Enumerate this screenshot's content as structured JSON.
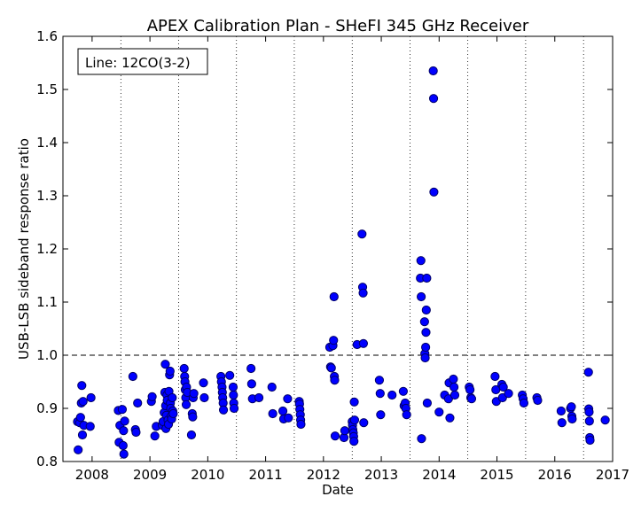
{
  "chart_data": {
    "type": "scatter",
    "title": "APEX Calibration Plan - SHeFI 345 GHz Receiver",
    "xlabel": "Date",
    "ylabel": "USB-LSB sideband response ratio",
    "xlim": [
      "2007-07-01",
      "2017-01-01"
    ],
    "ylim": [
      0.8,
      1.6
    ],
    "x_ticks": [
      "2008",
      "2009",
      "2010",
      "2011",
      "2012",
      "2013",
      "2014",
      "2015",
      "2016",
      "2017"
    ],
    "y_ticks": [
      "0.8",
      "0.9",
      "1.0",
      "1.1",
      "1.2",
      "1.3",
      "1.4",
      "1.5",
      "1.6"
    ],
    "x_gridlines": [
      "2008-07-01",
      "2009-07-01",
      "2010-07-01",
      "2011-07-01",
      "2012-07-01",
      "2013-07-01",
      "2014-07-01",
      "2015-07-01",
      "2016-07-01"
    ],
    "reference_line": 1.0,
    "annotation": "Line: 12CO(3-2)",
    "legend_position": "top-left",
    "marker_color": "#0000ff",
    "marker_edge_color": "#000066",
    "points": [
      {
        "x": "2007-10-01",
        "y": 0.875
      },
      {
        "x": "2007-10-05",
        "y": 0.822
      },
      {
        "x": "2007-10-15",
        "y": 0.873
      },
      {
        "x": "2007-10-20",
        "y": 0.883
      },
      {
        "x": "2007-10-25",
        "y": 0.91
      },
      {
        "x": "2007-10-28",
        "y": 0.943
      },
      {
        "x": "2007-11-01",
        "y": 0.85
      },
      {
        "x": "2007-11-05",
        "y": 0.913
      },
      {
        "x": "2007-11-10",
        "y": 0.868
      },
      {
        "x": "2007-12-20",
        "y": 0.866
      },
      {
        "x": "2007-12-25",
        "y": 0.92
      },
      {
        "x": "2008-06-15",
        "y": 0.896
      },
      {
        "x": "2008-06-20",
        "y": 0.836
      },
      {
        "x": "2008-06-25",
        "y": 0.868
      },
      {
        "x": "2008-07-10",
        "y": 0.898
      },
      {
        "x": "2008-07-15",
        "y": 0.83
      },
      {
        "x": "2008-07-18",
        "y": 0.858
      },
      {
        "x": "2008-07-20",
        "y": 0.814
      },
      {
        "x": "2008-07-25",
        "y": 0.876
      },
      {
        "x": "2008-09-15",
        "y": 0.96
      },
      {
        "x": "2008-10-01",
        "y": 0.86
      },
      {
        "x": "2008-10-05",
        "y": 0.855
      },
      {
        "x": "2008-10-15",
        "y": 0.91
      },
      {
        "x": "2009-01-10",
        "y": 0.913
      },
      {
        "x": "2009-01-15",
        "y": 0.922
      },
      {
        "x": "2009-02-01",
        "y": 0.848
      },
      {
        "x": "2009-02-10",
        "y": 0.866
      },
      {
        "x": "2009-03-20",
        "y": 0.868
      },
      {
        "x": "2009-03-25",
        "y": 0.875
      },
      {
        "x": "2009-04-01",
        "y": 0.892
      },
      {
        "x": "2009-04-05",
        "y": 0.93
      },
      {
        "x": "2009-04-08",
        "y": 0.983
      },
      {
        "x": "2009-04-10",
        "y": 0.905
      },
      {
        "x": "2009-04-12",
        "y": 0.862
      },
      {
        "x": "2009-04-15",
        "y": 0.887
      },
      {
        "x": "2009-04-18",
        "y": 0.925
      },
      {
        "x": "2009-04-20",
        "y": 0.915
      },
      {
        "x": "2009-04-25",
        "y": 0.878
      },
      {
        "x": "2009-04-28",
        "y": 0.87
      },
      {
        "x": "2009-05-01",
        "y": 0.932
      },
      {
        "x": "2009-05-05",
        "y": 0.963
      },
      {
        "x": "2009-05-08",
        "y": 0.97
      },
      {
        "x": "2009-05-10",
        "y": 0.91
      },
      {
        "x": "2009-05-12",
        "y": 0.9
      },
      {
        "x": "2009-05-15",
        "y": 0.885
      },
      {
        "x": "2009-05-18",
        "y": 0.88
      },
      {
        "x": "2009-05-22",
        "y": 0.92
      },
      {
        "x": "2009-05-25",
        "y": 0.895
      },
      {
        "x": "2009-05-28",
        "y": 0.89
      },
      {
        "x": "2009-08-05",
        "y": 0.975
      },
      {
        "x": "2009-08-08",
        "y": 0.96
      },
      {
        "x": "2009-08-10",
        "y": 0.95
      },
      {
        "x": "2009-08-12",
        "y": 0.935
      },
      {
        "x": "2009-08-15",
        "y": 0.92
      },
      {
        "x": "2009-08-18",
        "y": 0.907
      },
      {
        "x": "2009-08-20",
        "y": 0.94
      },
      {
        "x": "2009-08-25",
        "y": 0.93
      },
      {
        "x": "2009-09-20",
        "y": 0.85
      },
      {
        "x": "2009-09-25",
        "y": 0.89
      },
      {
        "x": "2009-09-28",
        "y": 0.884
      },
      {
        "x": "2009-10-01",
        "y": 0.92
      },
      {
        "x": "2009-10-05",
        "y": 0.928
      },
      {
        "x": "2009-12-05",
        "y": 0.948
      },
      {
        "x": "2009-12-10",
        "y": 0.92
      },
      {
        "x": "2010-03-25",
        "y": 0.96
      },
      {
        "x": "2010-03-28",
        "y": 0.95
      },
      {
        "x": "2010-04-01",
        "y": 0.94
      },
      {
        "x": "2010-04-03",
        "y": 0.93
      },
      {
        "x": "2010-04-05",
        "y": 0.92
      },
      {
        "x": "2010-04-08",
        "y": 0.91
      },
      {
        "x": "2010-04-10",
        "y": 0.897
      },
      {
        "x": "2010-05-20",
        "y": 0.962
      },
      {
        "x": "2010-06-10",
        "y": 0.94
      },
      {
        "x": "2010-06-12",
        "y": 0.925
      },
      {
        "x": "2010-06-14",
        "y": 0.91
      },
      {
        "x": "2010-06-16",
        "y": 0.9
      },
      {
        "x": "2010-10-01",
        "y": 0.975
      },
      {
        "x": "2010-10-05",
        "y": 0.946
      },
      {
        "x": "2010-10-10",
        "y": 0.918
      },
      {
        "x": "2010-11-20",
        "y": 0.92
      },
      {
        "x": "2011-02-10",
        "y": 0.94
      },
      {
        "x": "2011-02-15",
        "y": 0.89
      },
      {
        "x": "2011-04-20",
        "y": 0.895
      },
      {
        "x": "2011-04-25",
        "y": 0.88
      },
      {
        "x": "2011-05-20",
        "y": 0.918
      },
      {
        "x": "2011-05-25",
        "y": 0.882
      },
      {
        "x": "2011-08-01",
        "y": 0.913
      },
      {
        "x": "2011-08-03",
        "y": 0.908
      },
      {
        "x": "2011-08-05",
        "y": 0.898
      },
      {
        "x": "2011-08-08",
        "y": 0.888
      },
      {
        "x": "2011-08-10",
        "y": 0.878
      },
      {
        "x": "2011-08-12",
        "y": 0.87
      },
      {
        "x": "2012-02-10",
        "y": 1.015
      },
      {
        "x": "2012-02-15",
        "y": 0.978
      },
      {
        "x": "2012-02-20",
        "y": 0.976
      },
      {
        "x": "2012-03-01",
        "y": 1.018
      },
      {
        "x": "2012-03-05",
        "y": 1.028
      },
      {
        "x": "2012-03-08",
        "y": 1.11
      },
      {
        "x": "2012-03-10",
        "y": 0.96
      },
      {
        "x": "2012-03-12",
        "y": 0.953
      },
      {
        "x": "2012-03-15",
        "y": 0.848
      },
      {
        "x": "2012-05-10",
        "y": 0.845
      },
      {
        "x": "2012-05-15",
        "y": 0.858
      },
      {
        "x": "2012-07-01",
        "y": 0.875
      },
      {
        "x": "2012-07-03",
        "y": 0.868
      },
      {
        "x": "2012-07-05",
        "y": 0.86
      },
      {
        "x": "2012-07-08",
        "y": 0.854
      },
      {
        "x": "2012-07-10",
        "y": 0.847
      },
      {
        "x": "2012-07-12",
        "y": 0.838
      },
      {
        "x": "2012-07-14",
        "y": 0.912
      },
      {
        "x": "2012-07-16",
        "y": 0.878
      },
      {
        "x": "2012-08-01",
        "y": 1.02
      },
      {
        "x": "2012-09-01",
        "y": 1.228
      },
      {
        "x": "2012-09-05",
        "y": 1.128
      },
      {
        "x": "2012-09-08",
        "y": 1.117
      },
      {
        "x": "2012-09-10",
        "y": 1.022
      },
      {
        "x": "2012-09-12",
        "y": 0.873
      },
      {
        "x": "2012-12-20",
        "y": 0.953
      },
      {
        "x": "2012-12-25",
        "y": 0.928
      },
      {
        "x": "2012-12-28",
        "y": 0.888
      },
      {
        "x": "2013-03-10",
        "y": 0.925
      },
      {
        "x": "2013-05-20",
        "y": 0.932
      },
      {
        "x": "2013-05-25",
        "y": 0.905
      },
      {
        "x": "2013-06-01",
        "y": 0.91
      },
      {
        "x": "2013-06-05",
        "y": 0.9
      },
      {
        "x": "2013-06-10",
        "y": 0.888
      },
      {
        "x": "2013-09-05",
        "y": 1.145
      },
      {
        "x": "2013-09-08",
        "y": 1.178
      },
      {
        "x": "2013-09-10",
        "y": 1.11
      },
      {
        "x": "2013-09-12",
        "y": 0.843
      },
      {
        "x": "2013-10-01",
        "y": 1.063
      },
      {
        "x": "2013-10-03",
        "y": 1.003
      },
      {
        "x": "2013-10-05",
        "y": 0.995
      },
      {
        "x": "2013-10-08",
        "y": 1.015
      },
      {
        "x": "2013-10-10",
        "y": 1.043
      },
      {
        "x": "2013-10-12",
        "y": 1.085
      },
      {
        "x": "2013-10-15",
        "y": 1.145
      },
      {
        "x": "2013-10-18",
        "y": 0.91
      },
      {
        "x": "2013-11-25",
        "y": 1.535
      },
      {
        "x": "2013-11-27",
        "y": 1.483
      },
      {
        "x": "2013-11-29",
        "y": 1.307
      },
      {
        "x": "2014-01-01",
        "y": 0.893
      },
      {
        "x": "2014-02-05",
        "y": 0.925
      },
      {
        "x": "2014-03-01",
        "y": 0.918
      },
      {
        "x": "2014-03-05",
        "y": 0.948
      },
      {
        "x": "2014-03-10",
        "y": 0.882
      },
      {
        "x": "2014-04-01",
        "y": 0.955
      },
      {
        "x": "2014-04-05",
        "y": 0.94
      },
      {
        "x": "2014-04-10",
        "y": 0.925
      },
      {
        "x": "2014-07-10",
        "y": 0.94
      },
      {
        "x": "2014-07-15",
        "y": 0.935
      },
      {
        "x": "2014-07-20",
        "y": 0.92
      },
      {
        "x": "2014-07-25",
        "y": 0.918
      },
      {
        "x": "2014-12-20",
        "y": 0.96
      },
      {
        "x": "2014-12-25",
        "y": 0.935
      },
      {
        "x": "2014-12-28",
        "y": 0.913
      },
      {
        "x": "2015-02-01",
        "y": 0.945
      },
      {
        "x": "2015-02-05",
        "y": 0.92
      },
      {
        "x": "2015-02-10",
        "y": 0.94
      },
      {
        "x": "2015-03-15",
        "y": 0.928
      },
      {
        "x": "2015-06-10",
        "y": 0.925
      },
      {
        "x": "2015-06-15",
        "y": 0.918
      },
      {
        "x": "2015-06-20",
        "y": 0.91
      },
      {
        "x": "2015-09-10",
        "y": 0.92
      },
      {
        "x": "2015-09-15",
        "y": 0.915
      },
      {
        "x": "2016-02-10",
        "y": 0.895
      },
      {
        "x": "2016-02-15",
        "y": 0.873
      },
      {
        "x": "2016-04-10",
        "y": 0.9
      },
      {
        "x": "2016-04-15",
        "y": 0.903
      },
      {
        "x": "2016-04-18",
        "y": 0.885
      },
      {
        "x": "2016-04-20",
        "y": 0.88
      },
      {
        "x": "2016-08-01",
        "y": 0.968
      },
      {
        "x": "2016-08-03",
        "y": 0.899
      },
      {
        "x": "2016-08-05",
        "y": 0.893
      },
      {
        "x": "2016-08-07",
        "y": 0.876
      },
      {
        "x": "2016-08-09",
        "y": 0.845
      },
      {
        "x": "2016-08-11",
        "y": 0.84
      },
      {
        "x": "2016-11-15",
        "y": 0.878
      }
    ]
  }
}
